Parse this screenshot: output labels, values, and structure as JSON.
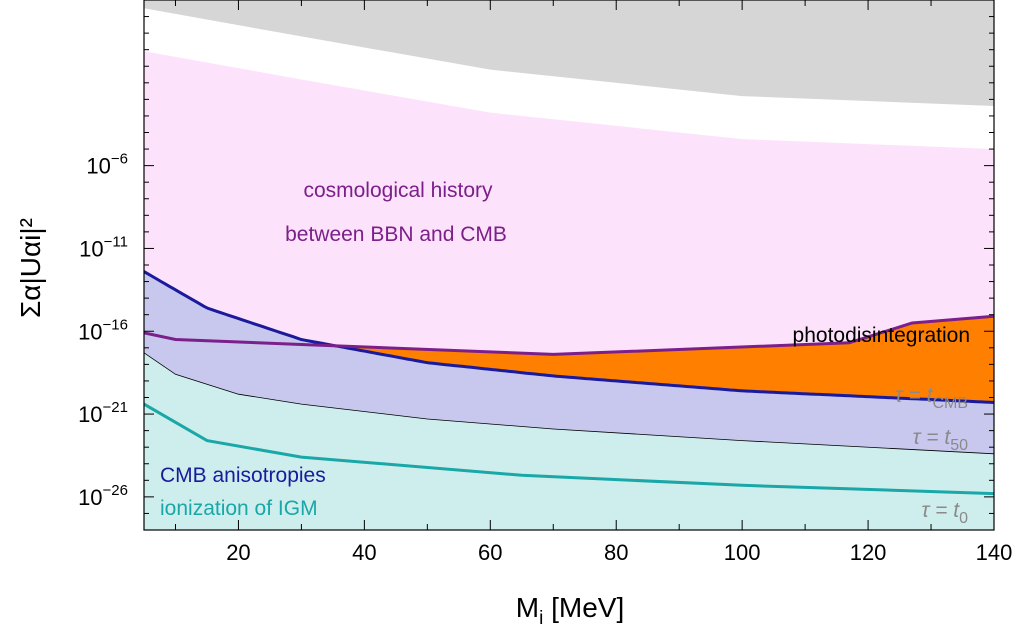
{
  "chart_data": {
    "type": "area",
    "title": "",
    "xlabel": "M",
    "xlabel_sub": "i",
    "xlabel_unit": "[MeV]",
    "ylabel": "Σα|Uαi|²",
    "xlim": [
      5,
      140
    ],
    "ylim_log10": [
      -28,
      4
    ],
    "y_scale": "log",
    "x_ticks": [
      20,
      40,
      60,
      80,
      100,
      120,
      140
    ],
    "x_tick_labels": [
      "20",
      "40",
      "60",
      "80",
      "100",
      "120",
      "140"
    ],
    "y_ticks_log10": [
      -26,
      -21,
      -16,
      -11,
      -6
    ],
    "y_tick_labels": [
      {
        "base": "10",
        "exp": "−26"
      },
      {
        "base": "10",
        "exp": "−21"
      },
      {
        "base": "10",
        "exp": "−16"
      },
      {
        "base": "10",
        "exp": "−11"
      },
      {
        "base": "10",
        "exp": "−6"
      }
    ],
    "colors": {
      "cosmology_fill": "#fde2fb",
      "cosmology_line": "#7b1f8a",
      "photodisintegration_fill": "#ff7f00",
      "cmb_fill": "#c8c8ee",
      "cmb_line": "#1a1a9c",
      "igm_fill": "#cdeeed",
      "igm_line": "#1aa7a7",
      "excluded_fill": "#d6d6d6",
      "tau_label": "#8a8a8a"
    },
    "series": [
      {
        "key": "cosmology_lower",
        "x": [
          5,
          10,
          30,
          70,
          117,
          127,
          140
        ],
        "log10_y": [
          -16.1,
          -16.5,
          -16.8,
          -17.4,
          -16.7,
          -15.5,
          -15.1
        ]
      },
      {
        "key": "cmb_upper",
        "x": [
          5,
          15,
          30,
          50,
          70,
          100,
          140
        ],
        "log10_y": [
          -12.4,
          -14.6,
          -16.5,
          -17.9,
          -18.7,
          -19.6,
          -20.3
        ]
      },
      {
        "key": "tau_tcmb_line",
        "x": [
          5,
          10,
          20,
          30,
          50,
          70,
          100,
          140
        ],
        "log10_y": [
          -17.3,
          -18.6,
          -19.8,
          -20.4,
          -21.3,
          -21.9,
          -22.6,
          -23.4
        ]
      },
      {
        "key": "igm_upper",
        "x": [
          5,
          15,
          30,
          65,
          100,
          140
        ],
        "log10_y": [
          -20.4,
          -22.6,
          -23.6,
          -24.7,
          -25.3,
          -25.8
        ]
      },
      {
        "key": "excluded_top_lower",
        "x": [
          50,
          80,
          110,
          140
        ],
        "log10_y": [
          4,
          2.8,
          1.6,
          0.6
        ]
      },
      {
        "key": "excluded_band_upper",
        "x": [
          5,
          30,
          60,
          100,
          140
        ],
        "log10_y": [
          3.5,
          1.8,
          -0.2,
          -1.8,
          -2.4
        ]
      }
    ],
    "annotations": {
      "cosmology_line1": "cosmological history",
      "cosmology_line2": "between BBN and CMB",
      "photodisintegration": "photodisintegration",
      "cmb": "CMB anisotropies",
      "igm": "ionization of IGM",
      "tau_cmb": {
        "prefix": "τ = t",
        "sub": "CMB"
      },
      "tau_50": {
        "prefix": "τ = t",
        "sub": "50"
      },
      "tau_0": {
        "prefix": "τ = t",
        "sub": "0"
      }
    }
  }
}
